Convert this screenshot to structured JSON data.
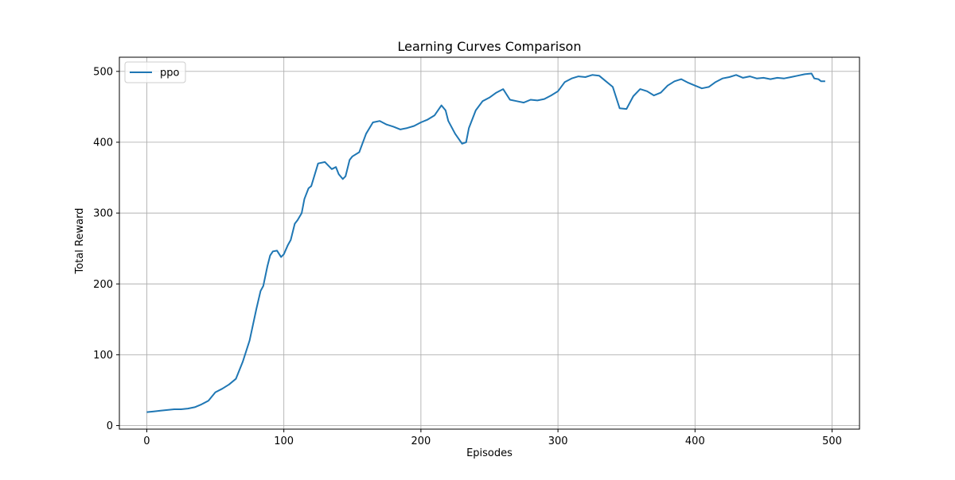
{
  "chart_data": {
    "type": "line",
    "title": "Learning Curves Comparison",
    "xlabel": "Episodes",
    "ylabel": "Total Reward",
    "xlim": [
      -20,
      520
    ],
    "ylim": [
      -5,
      520
    ],
    "xticks": [
      0,
      100,
      200,
      300,
      400,
      500
    ],
    "yticks": [
      0,
      100,
      200,
      300,
      400,
      500
    ],
    "grid": true,
    "legend_position": "top-left",
    "series": [
      {
        "name": "ppo",
        "color": "#1f77b4",
        "x": [
          0,
          5,
          10,
          15,
          20,
          25,
          30,
          35,
          40,
          45,
          50,
          55,
          60,
          65,
          70,
          75,
          80,
          83,
          85,
          88,
          90,
          92,
          95,
          98,
          100,
          103,
          105,
          108,
          110,
          113,
          115,
          118,
          120,
          125,
          130,
          135,
          138,
          140,
          143,
          145,
          148,
          150,
          155,
          160,
          165,
          170,
          175,
          180,
          185,
          190,
          195,
          200,
          205,
          210,
          215,
          218,
          220,
          225,
          230,
          233,
          235,
          240,
          245,
          250,
          255,
          260,
          265,
          270,
          275,
          280,
          285,
          290,
          295,
          300,
          305,
          310,
          315,
          320,
          325,
          330,
          335,
          340,
          345,
          350,
          355,
          360,
          365,
          370,
          375,
          380,
          385,
          390,
          395,
          400,
          405,
          410,
          415,
          420,
          425,
          430,
          435,
          440,
          445,
          450,
          455,
          460,
          465,
          470,
          475,
          480,
          485,
          487,
          490,
          492,
          495
        ],
        "y": [
          19,
          20,
          21,
          22,
          23,
          23,
          24,
          26,
          30,
          35,
          47,
          52,
          58,
          66,
          90,
          120,
          165,
          190,
          197,
          225,
          240,
          246,
          247,
          238,
          242,
          255,
          262,
          285,
          290,
          300,
          320,
          335,
          338,
          370,
          372,
          362,
          365,
          355,
          348,
          352,
          375,
          380,
          386,
          412,
          428,
          430,
          425,
          422,
          418,
          420,
          423,
          428,
          432,
          438,
          452,
          445,
          430,
          412,
          398,
          400,
          420,
          445,
          458,
          463,
          470,
          475,
          460,
          458,
          456,
          460,
          459,
          461,
          466,
          472,
          485,
          490,
          493,
          492,
          495,
          494,
          486,
          478,
          448,
          447,
          465,
          475,
          472,
          466,
          470,
          480,
          486,
          489,
          484,
          480,
          476,
          478,
          485,
          490,
          492,
          495,
          491,
          493,
          490,
          491,
          489,
          491,
          490,
          492,
          494,
          496,
          497,
          490,
          489,
          486,
          486
        ]
      }
    ]
  }
}
